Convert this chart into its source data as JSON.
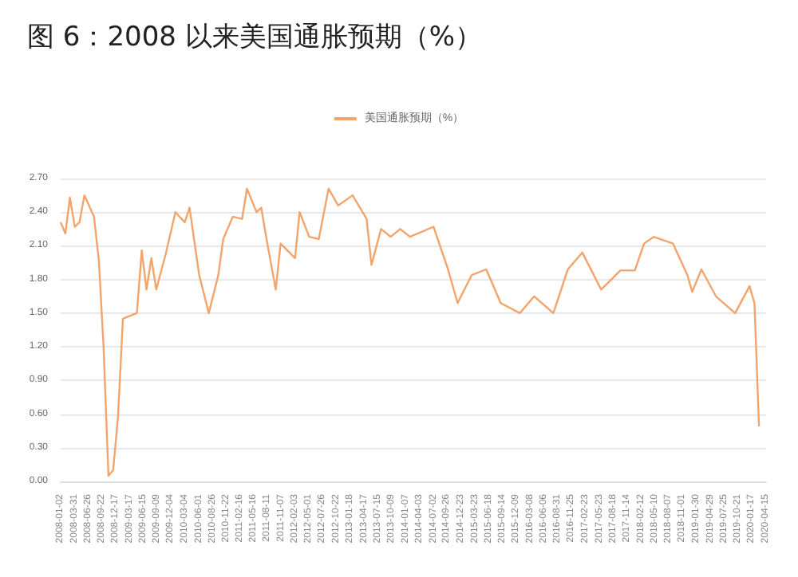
{
  "chart_data": {
    "type": "line",
    "title": "图 6：2008 以来美国通胀预期（%）",
    "x": [
      "2008-01-02",
      "2008-02",
      "2008-03",
      "2008-04",
      "2008-05",
      "2008-06",
      "2008-08",
      "2008-09",
      "2008-10",
      "2008-11",
      "2008-12",
      "2009-01",
      "2009-02",
      "2009-05",
      "2009-06",
      "2009-07",
      "2009-08",
      "2009-09",
      "2009-11",
      "2010-01",
      "2010-03",
      "2010-04",
      "2010-06",
      "2010-08",
      "2010-10",
      "2010-11",
      "2011-01",
      "2011-03",
      "2011-04",
      "2011-06",
      "2011-07",
      "2011-08",
      "2011-10",
      "2011-11",
      "2012-02",
      "2012-03",
      "2012-05",
      "2012-07",
      "2012-09",
      "2012-11",
      "2013-02",
      "2013-05",
      "2013-06",
      "2013-08",
      "2013-10",
      "2013-12",
      "2014-02",
      "2014-07",
      "2014-10",
      "2014-12",
      "2015-03",
      "2015-06",
      "2015-09",
      "2016-01",
      "2016-04",
      "2016-08",
      "2016-11",
      "2017-02",
      "2017-06",
      "2017-10",
      "2018-01",
      "2018-03",
      "2018-05",
      "2018-09",
      "2018-12",
      "2019-01",
      "2019-03",
      "2019-06",
      "2019-10",
      "2020-01",
      "2020-02",
      "2020-03"
    ],
    "series": [
      {
        "name": "美国通胀预期（%）",
        "color": "#f2a46c",
        "values": [
          2.31,
          2.21,
          2.53,
          2.27,
          2.31,
          2.55,
          2.36,
          1.97,
          1.2,
          0.05,
          0.1,
          0.58,
          1.45,
          1.5,
          2.06,
          1.71,
          1.99,
          1.71,
          2.03,
          2.4,
          2.31,
          2.44,
          1.84,
          1.5,
          1.84,
          2.16,
          2.36,
          2.34,
          2.61,
          2.4,
          2.44,
          2.18,
          1.71,
          2.12,
          1.99,
          2.4,
          2.18,
          2.16,
          2.61,
          2.46,
          2.55,
          2.34,
          1.93,
          2.25,
          2.18,
          2.25,
          2.18,
          2.27,
          1.89,
          1.59,
          1.84,
          1.89,
          1.59,
          1.5,
          1.65,
          1.5,
          1.89,
          2.04,
          1.71,
          1.88,
          1.88,
          2.12,
          2.18,
          2.12,
          1.84,
          1.69,
          1.89,
          1.65,
          1.5,
          1.74,
          1.59,
          0.49
        ]
      }
    ],
    "xlim": [
      "2008-01-02",
      "2020-04-15"
    ],
    "xticks": [
      "2008-01-02",
      "2008-03-31",
      "2008-06-26",
      "2008-09-22",
      "2008-12-17",
      "2009-03-17",
      "2009-06-15",
      "2009-09-09",
      "2009-12-04",
      "2010-03-04",
      "2010-06-01",
      "2010-08-26",
      "2010-11-22",
      "2011-02-16",
      "2011-05-16",
      "2011-08-11",
      "2011-11-07",
      "2012-02-03",
      "2012-05-01",
      "2012-07-26",
      "2012-10-22",
      "2013-01-18",
      "2013-04-17",
      "2013-07-15",
      "2013-10-09",
      "2014-01-07",
      "2014-04-03",
      "2014-07-02",
      "2014-09-26",
      "2014-12-23",
      "2015-03-23",
      "2015-06-18",
      "2015-09-14",
      "2015-12-09",
      "2016-03-08",
      "2016-06-06",
      "2016-08-31",
      "2016-11-25",
      "2017-02-23",
      "2017-05-23",
      "2017-08-18",
      "2017-11-14",
      "2018-02-12",
      "2018-05-10",
      "2018-08-07",
      "2018-11-01",
      "2019-01-30",
      "2019-04-29",
      "2019-07-25",
      "2019-10-21",
      "2020-01-17",
      "2020-04-15"
    ],
    "ylim": [
      0,
      2.7
    ],
    "yticks": [
      {
        "value": 0,
        "label": "0.00"
      },
      {
        "value": 0.3,
        "label": "0.30"
      },
      {
        "value": 0.6,
        "label": "0.60"
      },
      {
        "value": 0.9,
        "label": "0.90"
      },
      {
        "value": 1.2,
        "label": "1.20"
      },
      {
        "value": 1.5,
        "label": "1.50"
      },
      {
        "value": 1.8,
        "label": "1.80"
      },
      {
        "value": 2.1,
        "label": "2.10"
      },
      {
        "value": 2.4,
        "label": "2.40"
      },
      {
        "value": 2.7,
        "label": "2.70"
      }
    ],
    "grid": "y",
    "legend": "top",
    "marker": "none",
    "line_style": "solid"
  }
}
